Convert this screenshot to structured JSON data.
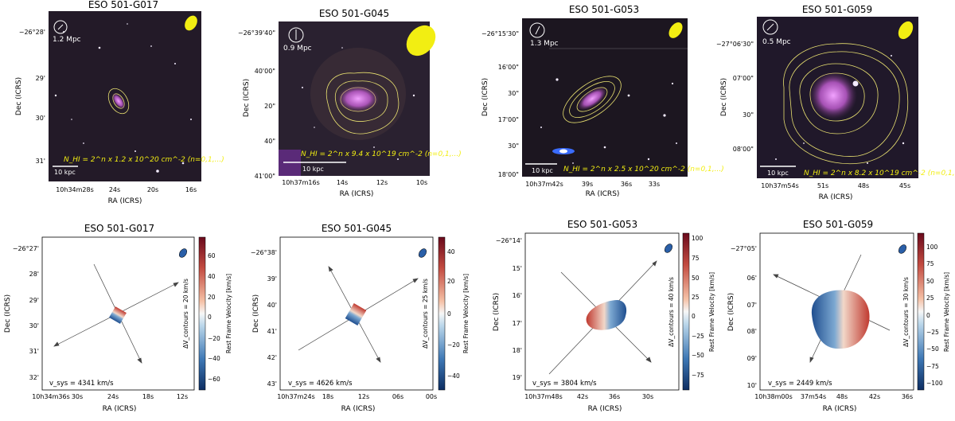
{
  "figure": {
    "optical_panels": [
      {
        "id": "G017",
        "title": "ESO 501-G017",
        "scale_label": "1.2 Mpc",
        "kpc_label": "10 kpc",
        "nhi_label": "N_HI = 2^n x 1.2 x 10^20 cm^-2 (n=0,1,...)",
        "dec_ticks": [
          "−26°28'",
          "29'",
          "30'",
          "31'"
        ],
        "ra_ticks": [
          "10h34m28s",
          "24s",
          "20s",
          "16s"
        ],
        "xlabel": "RA (ICRS)",
        "ylabel": "Dec (ICRS)"
      },
      {
        "id": "G045",
        "title": "ESO 501-G045",
        "scale_label": "0.9 Mpc",
        "kpc_label": "10 kpc",
        "nhi_label": "N_HI = 2^n x 9.4 x 10^19 cm^-2 (n=0,1,...)",
        "dec_ticks": [
          "−26°39'40\"",
          "40'00\"",
          "20\"",
          "40\"",
          "41'00\""
        ],
        "ra_ticks": [
          "10h37m16s",
          "14s",
          "12s",
          "10s"
        ],
        "xlabel": "RA (ICRS)",
        "ylabel": "Dec (ICRS)"
      },
      {
        "id": "G053",
        "title": "ESO 501-G053",
        "scale_label": "1.3 Mpc",
        "kpc_label": "10 kpc",
        "nhi_label": "N_HI = 2^n x 2.5 x 10^20 cm^-2 (n=0,1,...)",
        "dec_ticks": [
          "−26°15'30\"",
          "16'00\"",
          "30\"",
          "17'00\"",
          "30\"",
          "18'00\""
        ],
        "ra_ticks": [
          "10h37m42s",
          "39s",
          "36s",
          "33s"
        ],
        "xlabel": "RA (ICRS)",
        "ylabel": "Dec (ICRS)"
      },
      {
        "id": "G059",
        "title": "ESO 501-G059",
        "scale_label": "0.5 Mpc",
        "kpc_label": "10 kpc",
        "nhi_label": "N_HI = 2^n x 8.2 x 10^19 cm^-2 (n=0,1,...)",
        "dec_ticks": [
          "−27°06'30\"",
          "07'00\"",
          "30\"",
          "08'00\""
        ],
        "ra_ticks": [
          "10h37m54s",
          "51s",
          "48s",
          "45s"
        ],
        "xlabel": "RA (ICRS)",
        "ylabel": "Dec (ICRS)"
      }
    ],
    "velocity_panels": [
      {
        "id": "G017",
        "title": "ESO 501-G017",
        "vsys": "v_sys = 4341 km/s",
        "contours": "ΔV_contours = 20 km/s",
        "cb_label": "Rest Frame Velocity [km/s]",
        "cb_ticks": [
          "60",
          "40",
          "20",
          "0",
          "−20",
          "−40",
          "−60"
        ],
        "cb_range": [
          -70,
          70
        ],
        "dec_ticks": [
          "−26°27'",
          "28'",
          "29'",
          "30'",
          "31'",
          "32'"
        ],
        "ra_ticks": [
          "10h34m36s",
          "30s",
          "24s",
          "18s",
          "12s"
        ],
        "xlabel": "RA (ICRS)",
        "ylabel": "Dec (ICRS)"
      },
      {
        "id": "G045",
        "title": "ESO 501-G045",
        "vsys": "v_sys = 4626 km/s",
        "contours": "ΔV_contours = 25 km/s",
        "cb_label": "Rest Frame Velocity [km/s]",
        "cb_ticks": [
          "40",
          "20",
          "0",
          "−20",
          "−40"
        ],
        "cb_range": [
          -50,
          50
        ],
        "dec_ticks": [
          "−26°38'",
          "39'",
          "40'",
          "41'",
          "42'",
          "43'"
        ],
        "ra_ticks": [
          "10h37m24s",
          "18s",
          "12s",
          "06s",
          "00s"
        ],
        "xlabel": "RA (ICRS)",
        "ylabel": "Dec (ICRS)"
      },
      {
        "id": "G053",
        "title": "ESO 501-G053",
        "vsys": "v_sys = 3804 km/s",
        "contours": "ΔV_contours = 40 km/s",
        "cb_label": "Rest Frame Velocity [km/s]",
        "cb_ticks": [
          "100",
          "75",
          "50",
          "25",
          "0",
          "−25",
          "−50",
          "−75"
        ],
        "cb_range": [
          -90,
          110
        ],
        "dec_ticks": [
          "−26°14'",
          "15'",
          "16'",
          "17'",
          "18'",
          "19'"
        ],
        "ra_ticks": [
          "10h37m48s",
          "42s",
          "36s",
          "30s"
        ],
        "xlabel": "RA (ICRS)",
        "ylabel": "Dec (ICRS)"
      },
      {
        "id": "G059",
        "title": "ESO 501-G059",
        "vsys": "v_sys = 2449 km/s",
        "contours": "ΔV_contours = 30 km/s",
        "cb_label": "Rest Frame Velocity [km/s]",
        "cb_ticks": [
          "100",
          "75",
          "50",
          "25",
          "0",
          "−25",
          "−50",
          "−75",
          "−100"
        ],
        "cb_range": [
          -110,
          120
        ],
        "dec_ticks": [
          "−27°05'",
          "06'",
          "07'",
          "08'",
          "09'",
          "10'"
        ],
        "ra_ticks": [
          "10h38m00s",
          "37m54s",
          "48s",
          "42s",
          "36s"
        ],
        "xlabel": "RA (ICRS)",
        "ylabel": "Dec (ICRS)"
      }
    ]
  },
  "colors": {
    "sky": "#231a28",
    "contour": "#e8e070",
    "galaxy": "#e070e8",
    "beam": "#f2ee12",
    "blue": "#2a5fa8",
    "red": "#b01f24"
  }
}
